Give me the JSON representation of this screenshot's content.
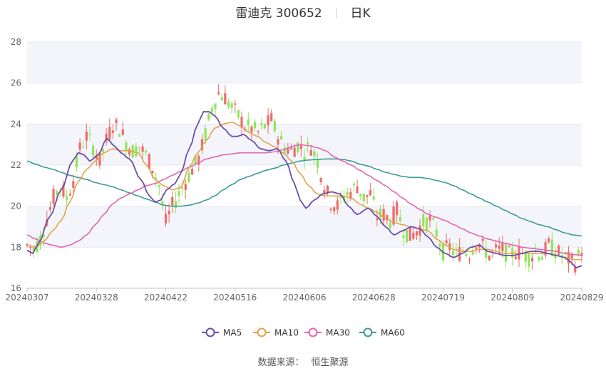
{
  "header": {
    "stock_name": "雷迪克",
    "stock_code": "300652",
    "period": "日K"
  },
  "source": {
    "label": "数据来源：",
    "provider": "恒生聚源"
  },
  "chart_data": {
    "type": "candlestick",
    "ylim": [
      16,
      28
    ],
    "yticks": [
      "16",
      "18",
      "20",
      "22",
      "24",
      "26",
      "28"
    ],
    "xticks": [
      "20240307",
      "20240328",
      "20240422",
      "20240516",
      "20240606",
      "20240628",
      "20240719",
      "20240809",
      "20240829"
    ],
    "colors": {
      "up": "#f06a6a",
      "down": "#8fe65a",
      "MA5": "#6a4fa8",
      "MA10": "#e0a34a",
      "MA30": "#e066b0",
      "MA60": "#3e9a9a"
    },
    "legend": [
      {
        "name": "MA5",
        "color": "#6a4fa8"
      },
      {
        "name": "MA10",
        "color": "#e0a34a"
      },
      {
        "name": "MA30",
        "color": "#e066b0"
      },
      {
        "name": "MA60",
        "color": "#3e9a9a"
      }
    ],
    "ma_anchors": {
      "MA5": [
        [
          0,
          17.85
        ],
        [
          2,
          17.7
        ],
        [
          4,
          18.2
        ],
        [
          8,
          19.5
        ],
        [
          12,
          20.8
        ],
        [
          16,
          22.2
        ],
        [
          18,
          22.6
        ],
        [
          20,
          22.5
        ],
        [
          22,
          22.2
        ],
        [
          25,
          22.5
        ],
        [
          28,
          23.3
        ],
        [
          31,
          22.9
        ],
        [
          33,
          22.6
        ],
        [
          36,
          22.3
        ],
        [
          40,
          21.3
        ],
        [
          43,
          20.5
        ],
        [
          45,
          20.2
        ],
        [
          47,
          20.3
        ],
        [
          49,
          20.8
        ],
        [
          52,
          21.1
        ],
        [
          54,
          21.6
        ],
        [
          57,
          22.8
        ],
        [
          60,
          24.0
        ],
        [
          62,
          24.6
        ],
        [
          64,
          24.6
        ],
        [
          66,
          24.4
        ],
        [
          69,
          23.8
        ],
        [
          72,
          23.4
        ],
        [
          74,
          23.4
        ],
        [
          76,
          23.5
        ],
        [
          79,
          23.2
        ],
        [
          82,
          22.8
        ],
        [
          85,
          22.7
        ],
        [
          88,
          22.8
        ],
        [
          91,
          22.2
        ],
        [
          94,
          21.1
        ],
        [
          96,
          20.3
        ],
        [
          98,
          19.9
        ],
        [
          101,
          20.3
        ],
        [
          104,
          20.6
        ],
        [
          107,
          20.7
        ],
        [
          110,
          20.6
        ],
        [
          113,
          20.0
        ],
        [
          116,
          19.6
        ],
        [
          120,
          19.9
        ],
        [
          123,
          19.5
        ],
        [
          126,
          19.0
        ],
        [
          129,
          18.6
        ],
        [
          132,
          18.8
        ],
        [
          135,
          19.0
        ],
        [
          138,
          18.9
        ],
        [
          141,
          18.5
        ],
        [
          144,
          18.0
        ],
        [
          147,
          17.7
        ],
        [
          150,
          17.5
        ],
        [
          153,
          17.7
        ],
        [
          156,
          18.0
        ],
        [
          159,
          18.1
        ],
        [
          162,
          17.8
        ],
        [
          165,
          17.7
        ],
        [
          168,
          17.6
        ],
        [
          171,
          17.6
        ],
        [
          174,
          17.7
        ],
        [
          177,
          17.8
        ],
        [
          180,
          17.8
        ],
        [
          183,
          17.7
        ],
        [
          186,
          17.6
        ],
        [
          189,
          17.5
        ],
        [
          191,
          17.3
        ],
        [
          193,
          17.0
        ],
        [
          195,
          17.1
        ]
      ],
      "MA10": [
        [
          0,
          18.1
        ],
        [
          3,
          18.0
        ],
        [
          6,
          18.3
        ],
        [
          9,
          18.8
        ],
        [
          12,
          19.3
        ],
        [
          15,
          20.2
        ],
        [
          18,
          21.2
        ],
        [
          21,
          21.8
        ],
        [
          24,
          22.2
        ],
        [
          27,
          22.6
        ],
        [
          30,
          22.8
        ],
        [
          33,
          22.7
        ],
        [
          36,
          22.7
        ],
        [
          39,
          22.6
        ],
        [
          42,
          22.0
        ],
        [
          45,
          21.3
        ],
        [
          48,
          21.0
        ],
        [
          51,
          20.8
        ],
        [
          54,
          20.9
        ],
        [
          57,
          21.9
        ],
        [
          60,
          22.6
        ],
        [
          63,
          23.2
        ],
        [
          66,
          23.8
        ],
        [
          69,
          24.0
        ],
        [
          72,
          24.1
        ],
        [
          75,
          23.9
        ],
        [
          78,
          23.6
        ],
        [
          81,
          23.4
        ],
        [
          84,
          23.1
        ],
        [
          87,
          22.9
        ],
        [
          90,
          22.6
        ],
        [
          93,
          22.2
        ],
        [
          96,
          21.6
        ],
        [
          99,
          21.0
        ],
        [
          102,
          20.6
        ],
        [
          105,
          20.5
        ],
        [
          108,
          20.5
        ],
        [
          111,
          20.5
        ],
        [
          114,
          20.4
        ],
        [
          117,
          20.1
        ],
        [
          120,
          19.9
        ],
        [
          123,
          19.7
        ],
        [
          126,
          19.4
        ],
        [
          129,
          19.2
        ],
        [
          132,
          19.1
        ],
        [
          135,
          19.0
        ],
        [
          138,
          18.9
        ],
        [
          141,
          18.8
        ],
        [
          144,
          18.4
        ],
        [
          147,
          18.1
        ],
        [
          150,
          17.9
        ],
        [
          153,
          17.8
        ],
        [
          156,
          17.8
        ],
        [
          159,
          17.9
        ],
        [
          162,
          17.9
        ],
        [
          165,
          17.8
        ],
        [
          168,
          17.7
        ],
        [
          171,
          17.7
        ],
        [
          174,
          17.7
        ],
        [
          177,
          17.7
        ],
        [
          180,
          17.7
        ],
        [
          183,
          17.7
        ],
        [
          186,
          17.6
        ],
        [
          189,
          17.5
        ],
        [
          192,
          17.4
        ],
        [
          195,
          17.4
        ]
      ],
      "MA30": [
        [
          0,
          18.6
        ],
        [
          3,
          18.4
        ],
        [
          6,
          18.2
        ],
        [
          9,
          18.1
        ],
        [
          12,
          18.0
        ],
        [
          15,
          18.1
        ],
        [
          18,
          18.3
        ],
        [
          21,
          18.6
        ],
        [
          24,
          19.1
        ],
        [
          27,
          19.6
        ],
        [
          30,
          20.1
        ],
        [
          33,
          20.4
        ],
        [
          36,
          20.6
        ],
        [
          39,
          20.8
        ],
        [
          42,
          21.0
        ],
        [
          45,
          21.1
        ],
        [
          48,
          21.3
        ],
        [
          51,
          21.5
        ],
        [
          54,
          21.7
        ],
        [
          57,
          21.9
        ],
        [
          60,
          22.1
        ],
        [
          63,
          22.3
        ],
        [
          66,
          22.4
        ],
        [
          69,
          22.5
        ],
        [
          72,
          22.55
        ],
        [
          75,
          22.6
        ],
        [
          78,
          22.6
        ],
        [
          81,
          22.6
        ],
        [
          84,
          22.6
        ],
        [
          87,
          22.65
        ],
        [
          90,
          22.75
        ],
        [
          93,
          22.9
        ],
        [
          96,
          23.0
        ],
        [
          99,
          22.95
        ],
        [
          102,
          22.85
        ],
        [
          105,
          22.7
        ],
        [
          108,
          22.4
        ],
        [
          111,
          22.2
        ],
        [
          114,
          22.0
        ],
        [
          117,
          21.75
        ],
        [
          120,
          21.5
        ],
        [
          123,
          21.25
        ],
        [
          126,
          21.0
        ],
        [
          129,
          20.7
        ],
        [
          132,
          20.4
        ],
        [
          135,
          20.1
        ],
        [
          138,
          19.85
        ],
        [
          141,
          19.6
        ],
        [
          144,
          19.45
        ],
        [
          147,
          19.3
        ],
        [
          150,
          19.1
        ],
        [
          153,
          18.9
        ],
        [
          156,
          18.7
        ],
        [
          159,
          18.55
        ],
        [
          162,
          18.4
        ],
        [
          165,
          18.3
        ],
        [
          168,
          18.2
        ],
        [
          171,
          18.1
        ],
        [
          174,
          18.0
        ],
        [
          177,
          17.95
        ],
        [
          180,
          17.9
        ],
        [
          183,
          17.85
        ],
        [
          186,
          17.8
        ],
        [
          189,
          17.7
        ],
        [
          192,
          17.65
        ],
        [
          195,
          17.6
        ]
      ],
      "MA60": [
        [
          0,
          22.2
        ],
        [
          3,
          22.05
        ],
        [
          6,
          21.9
        ],
        [
          9,
          21.8
        ],
        [
          12,
          21.65
        ],
        [
          15,
          21.5
        ],
        [
          18,
          21.4
        ],
        [
          21,
          21.3
        ],
        [
          24,
          21.15
        ],
        [
          27,
          21.05
        ],
        [
          30,
          20.95
        ],
        [
          33,
          20.8
        ],
        [
          36,
          20.65
        ],
        [
          39,
          20.5
        ],
        [
          42,
          20.35
        ],
        [
          45,
          20.2
        ],
        [
          48,
          20.05
        ],
        [
          51,
          20.0
        ],
        [
          54,
          20.0
        ],
        [
          57,
          20.05
        ],
        [
          60,
          20.15
        ],
        [
          63,
          20.3
        ],
        [
          66,
          20.5
        ],
        [
          69,
          20.8
        ],
        [
          72,
          21.05
        ],
        [
          75,
          21.3
        ],
        [
          78,
          21.45
        ],
        [
          81,
          21.6
        ],
        [
          84,
          21.75
        ],
        [
          87,
          21.85
        ],
        [
          90,
          22.0
        ],
        [
          93,
          22.1
        ],
        [
          96,
          22.2
        ],
        [
          99,
          22.25
        ],
        [
          102,
          22.28
        ],
        [
          105,
          22.3
        ],
        [
          108,
          22.3
        ],
        [
          111,
          22.28
        ],
        [
          114,
          22.2
        ],
        [
          117,
          22.05
        ],
        [
          120,
          21.95
        ],
        [
          123,
          21.8
        ],
        [
          126,
          21.65
        ],
        [
          129,
          21.55
        ],
        [
          132,
          21.45
        ],
        [
          135,
          21.4
        ],
        [
          138,
          21.4
        ],
        [
          141,
          21.35
        ],
        [
          144,
          21.25
        ],
        [
          147,
          21.15
        ],
        [
          150,
          21.0
        ],
        [
          153,
          20.8
        ],
        [
          156,
          20.6
        ],
        [
          159,
          20.4
        ],
        [
          162,
          20.2
        ],
        [
          165,
          20.0
        ],
        [
          168,
          19.8
        ],
        [
          171,
          19.6
        ],
        [
          174,
          19.4
        ],
        [
          177,
          19.25
        ],
        [
          180,
          19.1
        ],
        [
          183,
          19.0
        ],
        [
          186,
          18.85
        ],
        [
          189,
          18.7
        ],
        [
          192,
          18.6
        ],
        [
          195,
          18.55
        ]
      ]
    },
    "candle_anchors": [
      [
        0,
        18.1
      ],
      [
        2,
        17.9
      ],
      [
        4,
        18.4
      ],
      [
        6,
        19.4
      ],
      [
        8,
        20.4
      ],
      [
        10,
        21.0
      ],
      [
        12,
        20.4
      ],
      [
        14,
        21.3
      ],
      [
        16,
        22.8
      ],
      [
        18,
        23.4
      ],
      [
        20,
        22.9
      ],
      [
        22,
        22.2
      ],
      [
        24,
        23.2
      ],
      [
        26,
        24.0
      ],
      [
        28,
        23.8
      ],
      [
        30,
        23.1
      ],
      [
        32,
        22.7
      ],
      [
        34,
        22.9
      ],
      [
        36,
        22.5
      ],
      [
        38,
        21.9
      ],
      [
        40,
        21.0
      ],
      [
        42,
        19.2
      ],
      [
        44,
        20.0
      ],
      [
        46,
        20.6
      ],
      [
        48,
        21.2
      ],
      [
        50,
        21.8
      ],
      [
        52,
        22.3
      ],
      [
        54,
        23.5
      ],
      [
        56,
        24.8
      ],
      [
        58,
        25.5
      ],
      [
        60,
        25.3
      ],
      [
        62,
        24.8
      ],
      [
        64,
        24.4
      ],
      [
        66,
        23.9
      ],
      [
        68,
        23.8
      ],
      [
        70,
        23.6
      ],
      [
        72,
        23.9
      ],
      [
        74,
        24.2
      ],
      [
        76,
        23.4
      ],
      [
        78,
        22.9
      ],
      [
        80,
        22.7
      ],
      [
        82,
        23.0
      ],
      [
        84,
        22.7
      ],
      [
        86,
        22.9
      ],
      [
        88,
        22.2
      ],
      [
        90,
        21.0
      ],
      [
        92,
        20.2
      ],
      [
        94,
        20.0
      ],
      [
        96,
        20.5
      ],
      [
        98,
        20.7
      ],
      [
        100,
        21.0
      ],
      [
        102,
        20.4
      ],
      [
        104,
        20.6
      ],
      [
        106,
        19.5
      ],
      [
        108,
        19.6
      ],
      [
        110,
        19.3
      ],
      [
        112,
        19.8
      ],
      [
        114,
        18.9
      ],
      [
        116,
        18.5
      ],
      [
        118,
        18.8
      ],
      [
        120,
        19.2
      ],
      [
        122,
        19.3
      ],
      [
        124,
        18.7
      ],
      [
        126,
        17.8
      ],
      [
        128,
        18.0
      ],
      [
        130,
        17.6
      ],
      [
        132,
        17.9
      ],
      [
        134,
        17.7
      ],
      [
        136,
        18.3
      ],
      [
        138,
        18.0
      ],
      [
        140,
        17.6
      ],
      [
        142,
        17.8
      ],
      [
        144,
        17.9
      ],
      [
        146,
        17.6
      ],
      [
        148,
        17.8
      ],
      [
        150,
        17.7
      ],
      [
        152,
        17.5
      ],
      [
        154,
        17.8
      ],
      [
        156,
        17.6
      ],
      [
        158,
        18.1
      ],
      [
        160,
        17.8
      ],
      [
        162,
        17.6
      ],
      [
        164,
        17.4
      ],
      [
        166,
        17.2
      ],
      [
        168,
        17.9
      ]
    ]
  }
}
